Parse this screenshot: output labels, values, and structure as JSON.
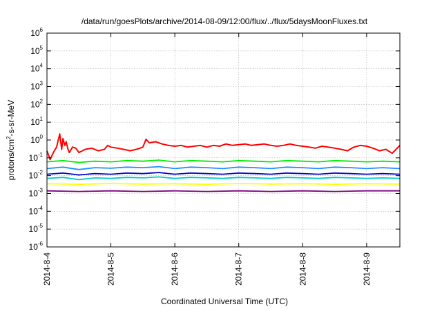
{
  "chart_data": {
    "type": "line",
    "title": "/data/run/goesPlots/archive/2014-08-09/12:00/flux/../flux/5daysMoonFluxes.txt",
    "xlabel": "Coordinated Universal Time (UTC)",
    "ylabel": {
      "base": "protons/cm",
      "sup": "2",
      "rest": "-s-sr-MeV"
    },
    "yscale": "log",
    "ylim": [
      1e-06,
      1000000.0
    ],
    "xlim": [
      0,
      5.52
    ],
    "x_unit": "days since 2014-08-04 00:00 UTC",
    "x_ticks": [
      {
        "value": 0,
        "label": "2014-8-4"
      },
      {
        "value": 1,
        "label": "2014-8-5"
      },
      {
        "value": 2,
        "label": "2014-8-6"
      },
      {
        "value": 3,
        "label": "2014-8-7"
      },
      {
        "value": 4,
        "label": "2014-8-8"
      },
      {
        "value": 5,
        "label": "2014-8-9"
      }
    ],
    "y_ticks": [
      {
        "value": 1e-06,
        "base": "10",
        "exp": "-6"
      },
      {
        "value": 1e-05,
        "base": "10",
        "exp": "-5"
      },
      {
        "value": 0.0001,
        "base": "10",
        "exp": "-4"
      },
      {
        "value": 0.001,
        "base": "10",
        "exp": "-3"
      },
      {
        "value": 0.01,
        "base": "10",
        "exp": "-2"
      },
      {
        "value": 0.1,
        "base": "10",
        "exp": "-1"
      },
      {
        "value": 1,
        "base": "10",
        "exp": "0"
      },
      {
        "value": 10.0,
        "base": "10",
        "exp": "1"
      },
      {
        "value": 100.0,
        "base": "10",
        "exp": "2"
      },
      {
        "value": 1000.0,
        "base": "10",
        "exp": "3"
      },
      {
        "value": 10000.0,
        "base": "10",
        "exp": "4"
      },
      {
        "value": 100000.0,
        "base": "10",
        "exp": "5"
      },
      {
        "value": 1000000.0,
        "base": "10",
        "exp": "6"
      }
    ],
    "grid": true,
    "legend": "none",
    "series": [
      {
        "color": "#ff0000",
        "x": [
          0,
          0.05,
          0.1,
          0.15,
          0.2,
          0.23,
          0.25,
          0.28,
          0.3,
          0.33,
          0.35,
          0.4,
          0.45,
          0.5,
          0.6,
          0.7,
          0.8,
          0.9,
          0.95,
          1.0,
          1.1,
          1.2,
          1.3,
          1.4,
          1.5,
          1.55,
          1.6,
          1.7,
          1.8,
          1.9,
          2.0,
          2.1,
          2.2,
          2.3,
          2.4,
          2.5,
          2.6,
          2.7,
          2.8,
          2.9,
          3.0,
          3.1,
          3.2,
          3.3,
          3.4,
          3.5,
          3.6,
          3.7,
          3.8,
          3.9,
          4.0,
          4.1,
          4.2,
          4.3,
          4.4,
          4.5,
          4.6,
          4.7,
          4.8,
          4.9,
          5.0,
          5.1,
          5.2,
          5.3,
          5.4,
          5.52
        ],
        "y": [
          0.25,
          0.08,
          0.2,
          0.4,
          2.2,
          0.3,
          1.2,
          0.5,
          0.8,
          0.3,
          0.2,
          0.4,
          0.35,
          0.2,
          0.3,
          0.35,
          0.25,
          0.3,
          0.5,
          0.4,
          0.35,
          0.3,
          0.25,
          0.3,
          0.4,
          1.1,
          0.7,
          0.8,
          0.6,
          0.5,
          0.45,
          0.5,
          0.4,
          0.45,
          0.5,
          0.4,
          0.5,
          0.45,
          0.6,
          0.5,
          0.55,
          0.6,
          0.5,
          0.55,
          0.6,
          0.5,
          0.45,
          0.5,
          0.6,
          0.5,
          0.45,
          0.4,
          0.35,
          0.45,
          0.4,
          0.35,
          0.3,
          0.25,
          0.4,
          0.5,
          0.45,
          0.35,
          0.25,
          0.3,
          0.18,
          0.5
        ]
      },
      {
        "color": "#00ee00",
        "x": [
          0,
          0.25,
          0.5,
          0.75,
          1.0,
          1.25,
          1.5,
          1.75,
          2.0,
          2.25,
          2.5,
          2.75,
          3.0,
          3.25,
          3.5,
          3.75,
          4.0,
          4.25,
          4.5,
          4.75,
          5.0,
          5.25,
          5.52
        ],
        "y": [
          0.06,
          0.07,
          0.055,
          0.065,
          0.06,
          0.07,
          0.065,
          0.075,
          0.06,
          0.07,
          0.065,
          0.06,
          0.07,
          0.065,
          0.06,
          0.07,
          0.065,
          0.06,
          0.07,
          0.065,
          0.06,
          0.065,
          0.06
        ]
      },
      {
        "color": "#1e90ff",
        "x": [
          0,
          0.25,
          0.5,
          0.75,
          1.0,
          1.25,
          1.5,
          1.75,
          2.0,
          2.25,
          2.5,
          2.75,
          3.0,
          3.25,
          3.5,
          3.75,
          4.0,
          4.25,
          4.5,
          4.75,
          5.0,
          5.25,
          5.52
        ],
        "y": [
          0.025,
          0.03,
          0.022,
          0.028,
          0.026,
          0.03,
          0.028,
          0.032,
          0.025,
          0.03,
          0.028,
          0.025,
          0.03,
          0.028,
          0.025,
          0.03,
          0.028,
          0.025,
          0.03,
          0.028,
          0.025,
          0.028,
          0.025
        ]
      },
      {
        "color": "#0000cc",
        "x": [
          0,
          0.25,
          0.5,
          0.75,
          1.0,
          1.25,
          1.5,
          1.75,
          2.0,
          2.25,
          2.5,
          2.75,
          3.0,
          3.25,
          3.5,
          3.75,
          4.0,
          4.25,
          4.5,
          4.75,
          5.0,
          5.25,
          5.52
        ],
        "y": [
          0.012,
          0.014,
          0.011,
          0.013,
          0.012,
          0.014,
          0.013,
          0.015,
          0.012,
          0.014,
          0.013,
          0.012,
          0.014,
          0.013,
          0.012,
          0.014,
          0.013,
          0.012,
          0.014,
          0.013,
          0.012,
          0.013,
          0.012
        ]
      },
      {
        "color": "#00cccc",
        "x": [
          0,
          0.25,
          0.5,
          0.75,
          1.0,
          1.25,
          1.5,
          1.75,
          2.0,
          2.25,
          2.5,
          2.75,
          3.0,
          3.25,
          3.5,
          3.75,
          4.0,
          4.25,
          4.5,
          4.75,
          5.0,
          5.25,
          5.52
        ],
        "y": [
          0.007,
          0.008,
          0.006,
          0.0075,
          0.007,
          0.008,
          0.0075,
          0.0085,
          0.007,
          0.008,
          0.0075,
          0.007,
          0.008,
          0.0075,
          0.007,
          0.008,
          0.0075,
          0.007,
          0.008,
          0.0075,
          0.007,
          0.0075,
          0.007
        ]
      },
      {
        "color": "#ffff00",
        "x": [
          0,
          0.5,
          1.0,
          1.5,
          2.0,
          2.5,
          3.0,
          3.5,
          4.0,
          4.5,
          5.0,
          5.52
        ],
        "y": [
          0.0035,
          0.0033,
          0.0036,
          0.0034,
          0.0035,
          0.0033,
          0.0036,
          0.0034,
          0.0035,
          0.0033,
          0.0035,
          0.0034
        ]
      },
      {
        "color": "#800080",
        "x": [
          0,
          0.5,
          1.0,
          1.5,
          2.0,
          2.5,
          3.0,
          3.5,
          4.0,
          4.5,
          5.0,
          5.52
        ],
        "y": [
          0.0014,
          0.0013,
          0.0014,
          0.0013,
          0.0014,
          0.0013,
          0.0014,
          0.0013,
          0.0014,
          0.0013,
          0.0014,
          0.0014
        ]
      }
    ]
  }
}
